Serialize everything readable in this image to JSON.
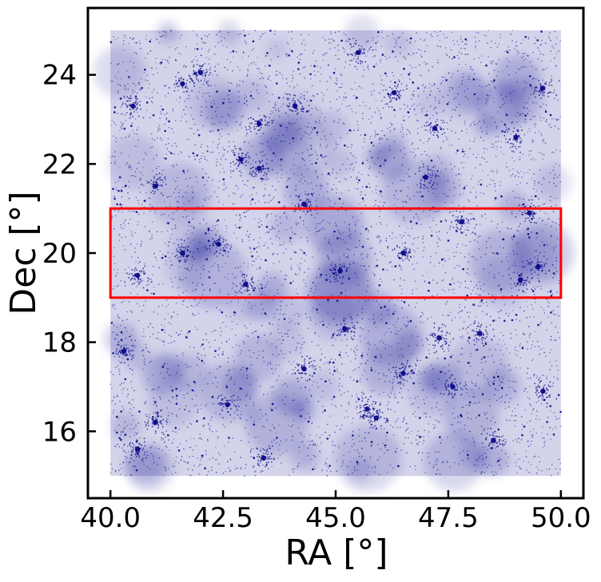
{
  "chart_data": {
    "type": "scatter",
    "title": "",
    "xlabel": "RA [°]",
    "ylabel": "Dec [°]",
    "xlim": [
      39.5,
      50.5
    ],
    "ylim": [
      14.5,
      25.5
    ],
    "xticks": [
      40.0,
      42.5,
      45.0,
      47.5,
      50.0
    ],
    "xtick_labels": [
      "40.0",
      "42.5",
      "45.0",
      "47.5",
      "50.0"
    ],
    "yticks": [
      16,
      18,
      20,
      22,
      24
    ],
    "ytick_labels": [
      "16",
      "18",
      "20",
      "22",
      "24"
    ],
    "grid": false,
    "legend": "none",
    "point_region": {
      "ra": [
        40.0,
        50.0
      ],
      "dec": [
        15.0,
        25.0
      ]
    },
    "point_color": "#0a0a8a",
    "highlight_box": {
      "ra": [
        40.0,
        50.0
      ],
      "dec": [
        19.0,
        21.0
      ],
      "color": "#ff0000"
    },
    "clusters": [
      {
        "ra": 42.0,
        "dec": 24.05
      },
      {
        "ra": 40.5,
        "dec": 23.3
      },
      {
        "ra": 41.6,
        "dec": 23.8
      },
      {
        "ra": 44.1,
        "dec": 23.3
      },
      {
        "ra": 43.3,
        "dec": 22.9
      },
      {
        "ra": 42.9,
        "dec": 22.1
      },
      {
        "ra": 43.3,
        "dec": 21.9
      },
      {
        "ra": 47.2,
        "dec": 22.8
      },
      {
        "ra": 49.0,
        "dec": 22.6
      },
      {
        "ra": 49.6,
        "dec": 23.7
      },
      {
        "ra": 46.3,
        "dec": 23.6
      },
      {
        "ra": 44.3,
        "dec": 21.1
      },
      {
        "ra": 41.0,
        "dec": 21.5
      },
      {
        "ra": 45.5,
        "dec": 24.5
      },
      {
        "ra": 47.8,
        "dec": 20.7
      },
      {
        "ra": 49.3,
        "dec": 20.9
      },
      {
        "ra": 41.6,
        "dec": 20.0
      },
      {
        "ra": 42.4,
        "dec": 20.2
      },
      {
        "ra": 43.0,
        "dec": 19.3
      },
      {
        "ra": 45.1,
        "dec": 19.6
      },
      {
        "ra": 46.5,
        "dec": 20.0
      },
      {
        "ra": 49.5,
        "dec": 19.7
      },
      {
        "ra": 40.6,
        "dec": 19.5
      },
      {
        "ra": 45.2,
        "dec": 18.3
      },
      {
        "ra": 47.3,
        "dec": 18.1
      },
      {
        "ra": 48.2,
        "dec": 18.2
      },
      {
        "ra": 44.3,
        "dec": 17.4
      },
      {
        "ra": 46.5,
        "dec": 17.3
      },
      {
        "ra": 47.6,
        "dec": 17.0
      },
      {
        "ra": 45.7,
        "dec": 16.5
      },
      {
        "ra": 45.9,
        "dec": 16.3
      },
      {
        "ra": 42.6,
        "dec": 16.6
      },
      {
        "ra": 41.0,
        "dec": 16.2
      },
      {
        "ra": 40.6,
        "dec": 15.6
      },
      {
        "ra": 43.4,
        "dec": 15.4
      },
      {
        "ra": 48.5,
        "dec": 15.8
      },
      {
        "ra": 49.6,
        "dec": 16.9
      },
      {
        "ra": 49.1,
        "dec": 19.4
      },
      {
        "ra": 47.0,
        "dec": 21.7
      },
      {
        "ra": 40.3,
        "dec": 17.8
      }
    ]
  }
}
